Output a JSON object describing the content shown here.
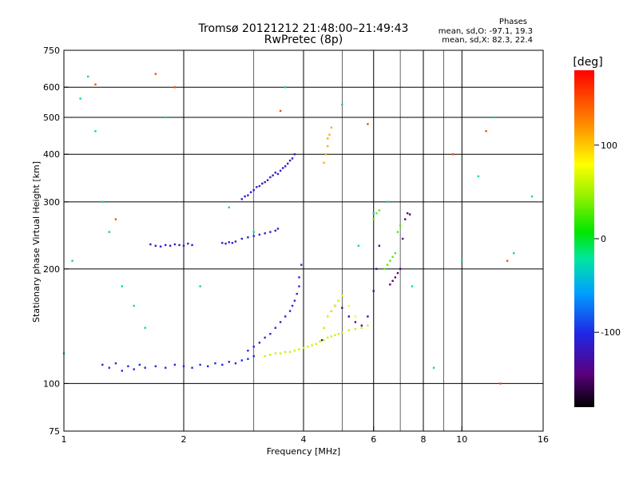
{
  "chart_data": {
    "type": "scatter",
    "title": "Tromsø 20121212 21:48:00–21:49:43",
    "subtitle": "RwPretec (8p)",
    "xlabel": "Frequency [MHz]",
    "ylabel": "Stationary phase Virtual Height [km]",
    "x_scale": "log",
    "y_scale": "log",
    "xlim": [
      1,
      16
    ],
    "ylim": [
      75,
      750
    ],
    "x_ticks": [
      1,
      2,
      4,
      6,
      8,
      10,
      16
    ],
    "x_grid": [
      2,
      4,
      6,
      8,
      10
    ],
    "x_minor": [
      3,
      5,
      7,
      9
    ],
    "y_ticks": [
      75,
      100,
      200,
      300,
      400,
      500,
      600,
      750
    ],
    "y_grid": [
      100,
      200,
      300,
      400,
      500,
      600
    ],
    "grid": true,
    "stats": {
      "heading": "Phases",
      "line_o": "mean, sd,O: -97.1, 19.3",
      "line_x": "mean, sd,X: 82.3, 22.4"
    },
    "colorbar": {
      "label": "[deg]",
      "min": -180,
      "max": 180,
      "ticks": [
        100,
        0,
        -100
      ]
    },
    "series": [
      {
        "name": "",
        "phase": -100,
        "x": [
          1.25,
          1.3,
          1.35,
          1.4,
          1.45,
          1.5,
          1.55,
          1.6,
          1.7,
          1.8,
          1.9,
          2.0,
          2.1,
          2.2,
          2.3,
          2.4,
          2.5,
          2.6,
          2.7,
          2.8,
          2.9,
          3.0
        ],
        "y": [
          112,
          110,
          113,
          108,
          111,
          109,
          112,
          110,
          111,
          110,
          112,
          111,
          110,
          112,
          111,
          113,
          112,
          114,
          113,
          115,
          116,
          118
        ]
      },
      {
        "name": "",
        "phase": -110,
        "x": [
          1.65,
          1.7,
          1.75,
          1.8,
          1.85,
          1.9,
          1.95,
          2.0,
          2.05,
          2.1,
          2.5,
          2.55,
          2.6,
          2.65,
          2.7,
          2.8,
          2.9,
          3.0,
          3.1,
          3.2,
          3.3,
          3.4,
          3.45
        ],
        "y": [
          232,
          230,
          229,
          231,
          230,
          232,
          231,
          230,
          233,
          231,
          234,
          233,
          235,
          234,
          236,
          240,
          242,
          244,
          246,
          248,
          250,
          252,
          255
        ]
      },
      {
        "name": "",
        "phase": -115,
        "x": [
          2.8,
          2.85,
          2.9,
          2.95,
          3.0,
          3.05,
          3.1,
          3.15,
          3.2,
          3.25,
          3.3,
          3.35,
          3.4,
          3.45,
          3.5,
          3.55,
          3.6,
          3.65,
          3.7,
          3.75,
          3.8
        ],
        "y": [
          305,
          310,
          312,
          318,
          322,
          328,
          330,
          335,
          338,
          342,
          348,
          352,
          358,
          355,
          362,
          368,
          372,
          378,
          385,
          390,
          400
        ]
      },
      {
        "name": "",
        "phase": -105,
        "x": [
          2.9,
          3.0,
          3.1,
          3.2,
          3.3,
          3.4,
          3.5,
          3.6,
          3.7,
          3.75,
          3.8,
          3.85,
          3.9,
          3.9,
          3.95
        ],
        "y": [
          122,
          125,
          128,
          132,
          135,
          140,
          145,
          150,
          155,
          160,
          165,
          172,
          180,
          190,
          205
        ]
      },
      {
        "name": "",
        "phase": -140,
        "x": [
          4.45,
          4.5,
          4.6,
          4.7,
          4.8,
          4.9,
          5.0,
          5.2,
          5.4,
          5.6,
          5.8,
          6.0,
          6.1,
          6.2
        ],
        "y": [
          130,
          140,
          150,
          155,
          160,
          165,
          158,
          150,
          145,
          142,
          150,
          175,
          200,
          230
        ]
      },
      {
        "name": "",
        "phase": -145,
        "x": [
          6.6,
          6.7,
          6.8,
          6.9,
          7.0,
          7.1,
          7.2,
          7.3,
          7.4
        ],
        "y": [
          182,
          186,
          190,
          195,
          200,
          240,
          270,
          280,
          278
        ]
      },
      {
        "name": "",
        "phase": 60,
        "x": [
          3.2,
          3.3,
          3.4,
          3.5,
          3.6,
          3.7,
          3.8,
          3.9,
          4.0,
          4.1,
          4.2,
          4.3,
          4.4,
          4.5,
          4.6,
          4.7,
          4.8,
          4.9,
          5.0,
          5.2,
          5.4,
          5.6,
          5.8
        ],
        "y": [
          118,
          119,
          120,
          120,
          121,
          121,
          122,
          123,
          124,
          125,
          126,
          127,
          129,
          130,
          132,
          133,
          134,
          135,
          136,
          138,
          139,
          140,
          142
        ]
      },
      {
        "name": "",
        "phase": 75,
        "x": [
          4.5,
          4.6,
          4.7,
          4.8,
          4.9,
          5.0,
          5.2,
          5.4
        ],
        "y": [
          140,
          150,
          155,
          160,
          165,
          170,
          160,
          150
        ]
      },
      {
        "name": "",
        "phase": 110,
        "x": [
          4.5,
          4.55,
          4.6,
          4.6,
          4.65,
          4.7
        ],
        "y": [
          380,
          400,
          420,
          440,
          450,
          470
        ]
      },
      {
        "name": "",
        "phase": 30,
        "x": [
          6.4,
          6.5,
          6.6,
          6.7,
          6.8,
          6.9,
          7.0,
          6.0,
          6.1,
          6.2
        ],
        "y": [
          200,
          205,
          210,
          215,
          220,
          250,
          260,
          270,
          280,
          285
        ]
      },
      {
        "name": "",
        "phase": -30,
        "x": [
          1.0,
          1.05,
          1.1,
          1.15,
          1.2,
          1.25,
          1.3,
          1.4,
          1.5,
          1.6,
          1.8,
          2.2,
          2.6,
          3.0,
          3.6,
          5.0,
          5.5,
          6.0,
          6.5,
          7.5,
          8.5,
          10,
          11,
          12,
          13.5,
          15
        ],
        "y": [
          120,
          210,
          560,
          640,
          460,
          300,
          250,
          180,
          160,
          140,
          500,
          180,
          290,
          250,
          600,
          540,
          230,
          280,
          300,
          180,
          110,
          210,
          350,
          500,
          220,
          310
        ]
      },
      {
        "name": "",
        "phase": 150,
        "x": [
          1.2,
          1.35,
          1.7,
          1.9,
          3.5,
          5.8,
          9.5,
          11.5,
          12.5,
          13
        ],
        "y": [
          610,
          270,
          650,
          600,
          520,
          480,
          400,
          460,
          100,
          210
        ]
      }
    ]
  }
}
